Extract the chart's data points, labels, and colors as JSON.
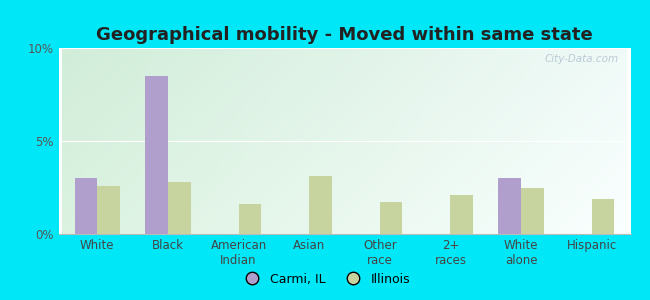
{
  "title": "Geographical mobility - Moved within same state",
  "categories": [
    "White",
    "Black",
    "American\nIndian",
    "Asian",
    "Other\nrace",
    "2+\nraces",
    "White\nalone",
    "Hispanic"
  ],
  "carmi_values": [
    3.0,
    8.5,
    0.0,
    0.0,
    0.0,
    0.0,
    3.0,
    0.0
  ],
  "illinois_values": [
    2.6,
    2.8,
    1.6,
    3.1,
    1.7,
    2.1,
    2.5,
    1.9
  ],
  "carmi_color": "#b09fcc",
  "illinois_color": "#c8d4a0",
  "ylim": [
    0,
    10
  ],
  "yticks": [
    0,
    5,
    10
  ],
  "ytick_labels": [
    "0%",
    "5%",
    "10%"
  ],
  "bar_width": 0.32,
  "outer_bg": "#00e8f8",
  "legend_carmi": "Carmi, IL",
  "legend_illinois": "Illinois",
  "watermark": "City-Data.com",
  "title_fontsize": 13,
  "tick_fontsize": 8.5,
  "bg_colors": [
    "#cde8d0",
    "#e8f4e0",
    "#dff0ec",
    "#f0faf8"
  ],
  "grid_color": "#ffffff",
  "spine_bottom_color": "#aaaaaa"
}
